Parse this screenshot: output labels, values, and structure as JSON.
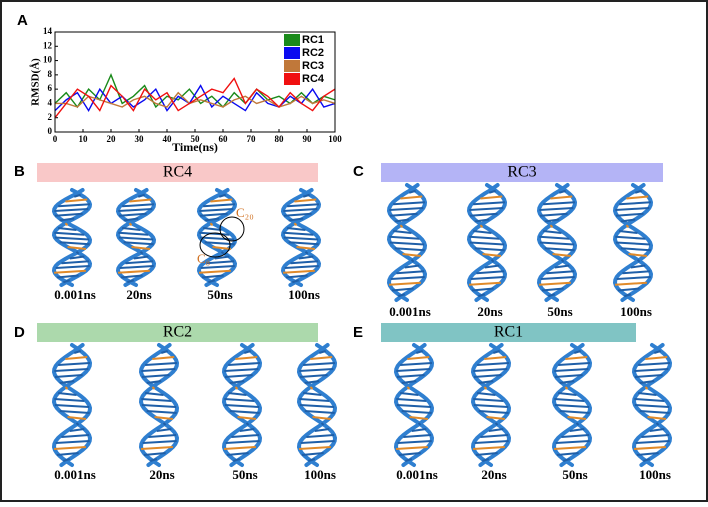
{
  "chart_data": {
    "type": "line",
    "x": [
      0,
      4,
      8,
      12,
      16,
      20,
      24,
      28,
      32,
      36,
      40,
      44,
      48,
      52,
      56,
      60,
      64,
      68,
      72,
      76,
      80,
      84,
      88,
      92,
      96,
      100
    ],
    "series": [
      {
        "name": "RC1",
        "color": "#1a8a1a",
        "values": [
          4,
          5.5,
          3.5,
          6,
          4.5,
          8,
          4,
          5,
          6.5,
          3.5,
          5,
          4.5,
          6,
          4,
          5,
          3.5,
          5.5,
          4,
          6,
          4.5,
          5,
          4,
          5.5,
          4,
          5,
          4.5
        ]
      },
      {
        "name": "RC2",
        "color": "#0a0af0",
        "values": [
          3,
          4.5,
          5.5,
          3,
          6,
          4,
          5,
          3.5,
          4.5,
          6,
          3,
          5,
          4,
          6.5,
          3.5,
          5,
          4,
          3,
          5.5,
          4,
          3.5,
          5,
          4,
          6,
          3.5,
          4
        ]
      },
      {
        "name": "RC3",
        "color": "#c0783a",
        "values": [
          4,
          4,
          3.5,
          5,
          4.5,
          4,
          3.5,
          4.5,
          5,
          4,
          3.5,
          5.5,
          4,
          4.5,
          4,
          3.5,
          4.5,
          5,
          4,
          4.5,
          3.5,
          4,
          5,
          4,
          4.5,
          4
        ]
      },
      {
        "name": "RC4",
        "color": "#f01010",
        "values": [
          2,
          4,
          6,
          5,
          3,
          6.5,
          5,
          3,
          6,
          4.5,
          5.5,
          3,
          4,
          5,
          6,
          5.5,
          7.5,
          4,
          6,
          5,
          3.5,
          5.5,
          4,
          3,
          5,
          6
        ]
      }
    ],
    "xlabel": "Time(ns)",
    "ylabel": "RMSD(Å)",
    "xlim": [
      0,
      100
    ],
    "xticks": [
      0,
      10,
      20,
      30,
      40,
      50,
      60,
      70,
      80,
      90,
      100
    ],
    "ylim": [
      0,
      14
    ],
    "yticks": [
      0,
      2,
      4,
      6,
      8,
      10,
      12,
      14
    ],
    "legend": "upper right",
    "panel_label": "A"
  },
  "panels": [
    {
      "label": "B",
      "title": "RC4",
      "color": "#f9c8c8",
      "times": [
        "0.001ns",
        "20ns",
        "50ns",
        "100ns"
      ],
      "annotations": [
        "C₂₀",
        "C₈"
      ]
    },
    {
      "label": "C",
      "title": "RC3",
      "color": "#b4b4f6",
      "times": [
        "0.001ns",
        "20ns",
        "50ns",
        "100ns"
      ]
    },
    {
      "label": "D",
      "title": "RC2",
      "color": "#acd9ac",
      "times": [
        "0.001ns",
        "20ns",
        "50ns",
        "100ns"
      ]
    },
    {
      "label": "E",
      "title": "RC1",
      "color": "#80c4c4",
      "times": [
        "0.001ns",
        "20ns",
        "50ns",
        "100ns"
      ]
    }
  ]
}
